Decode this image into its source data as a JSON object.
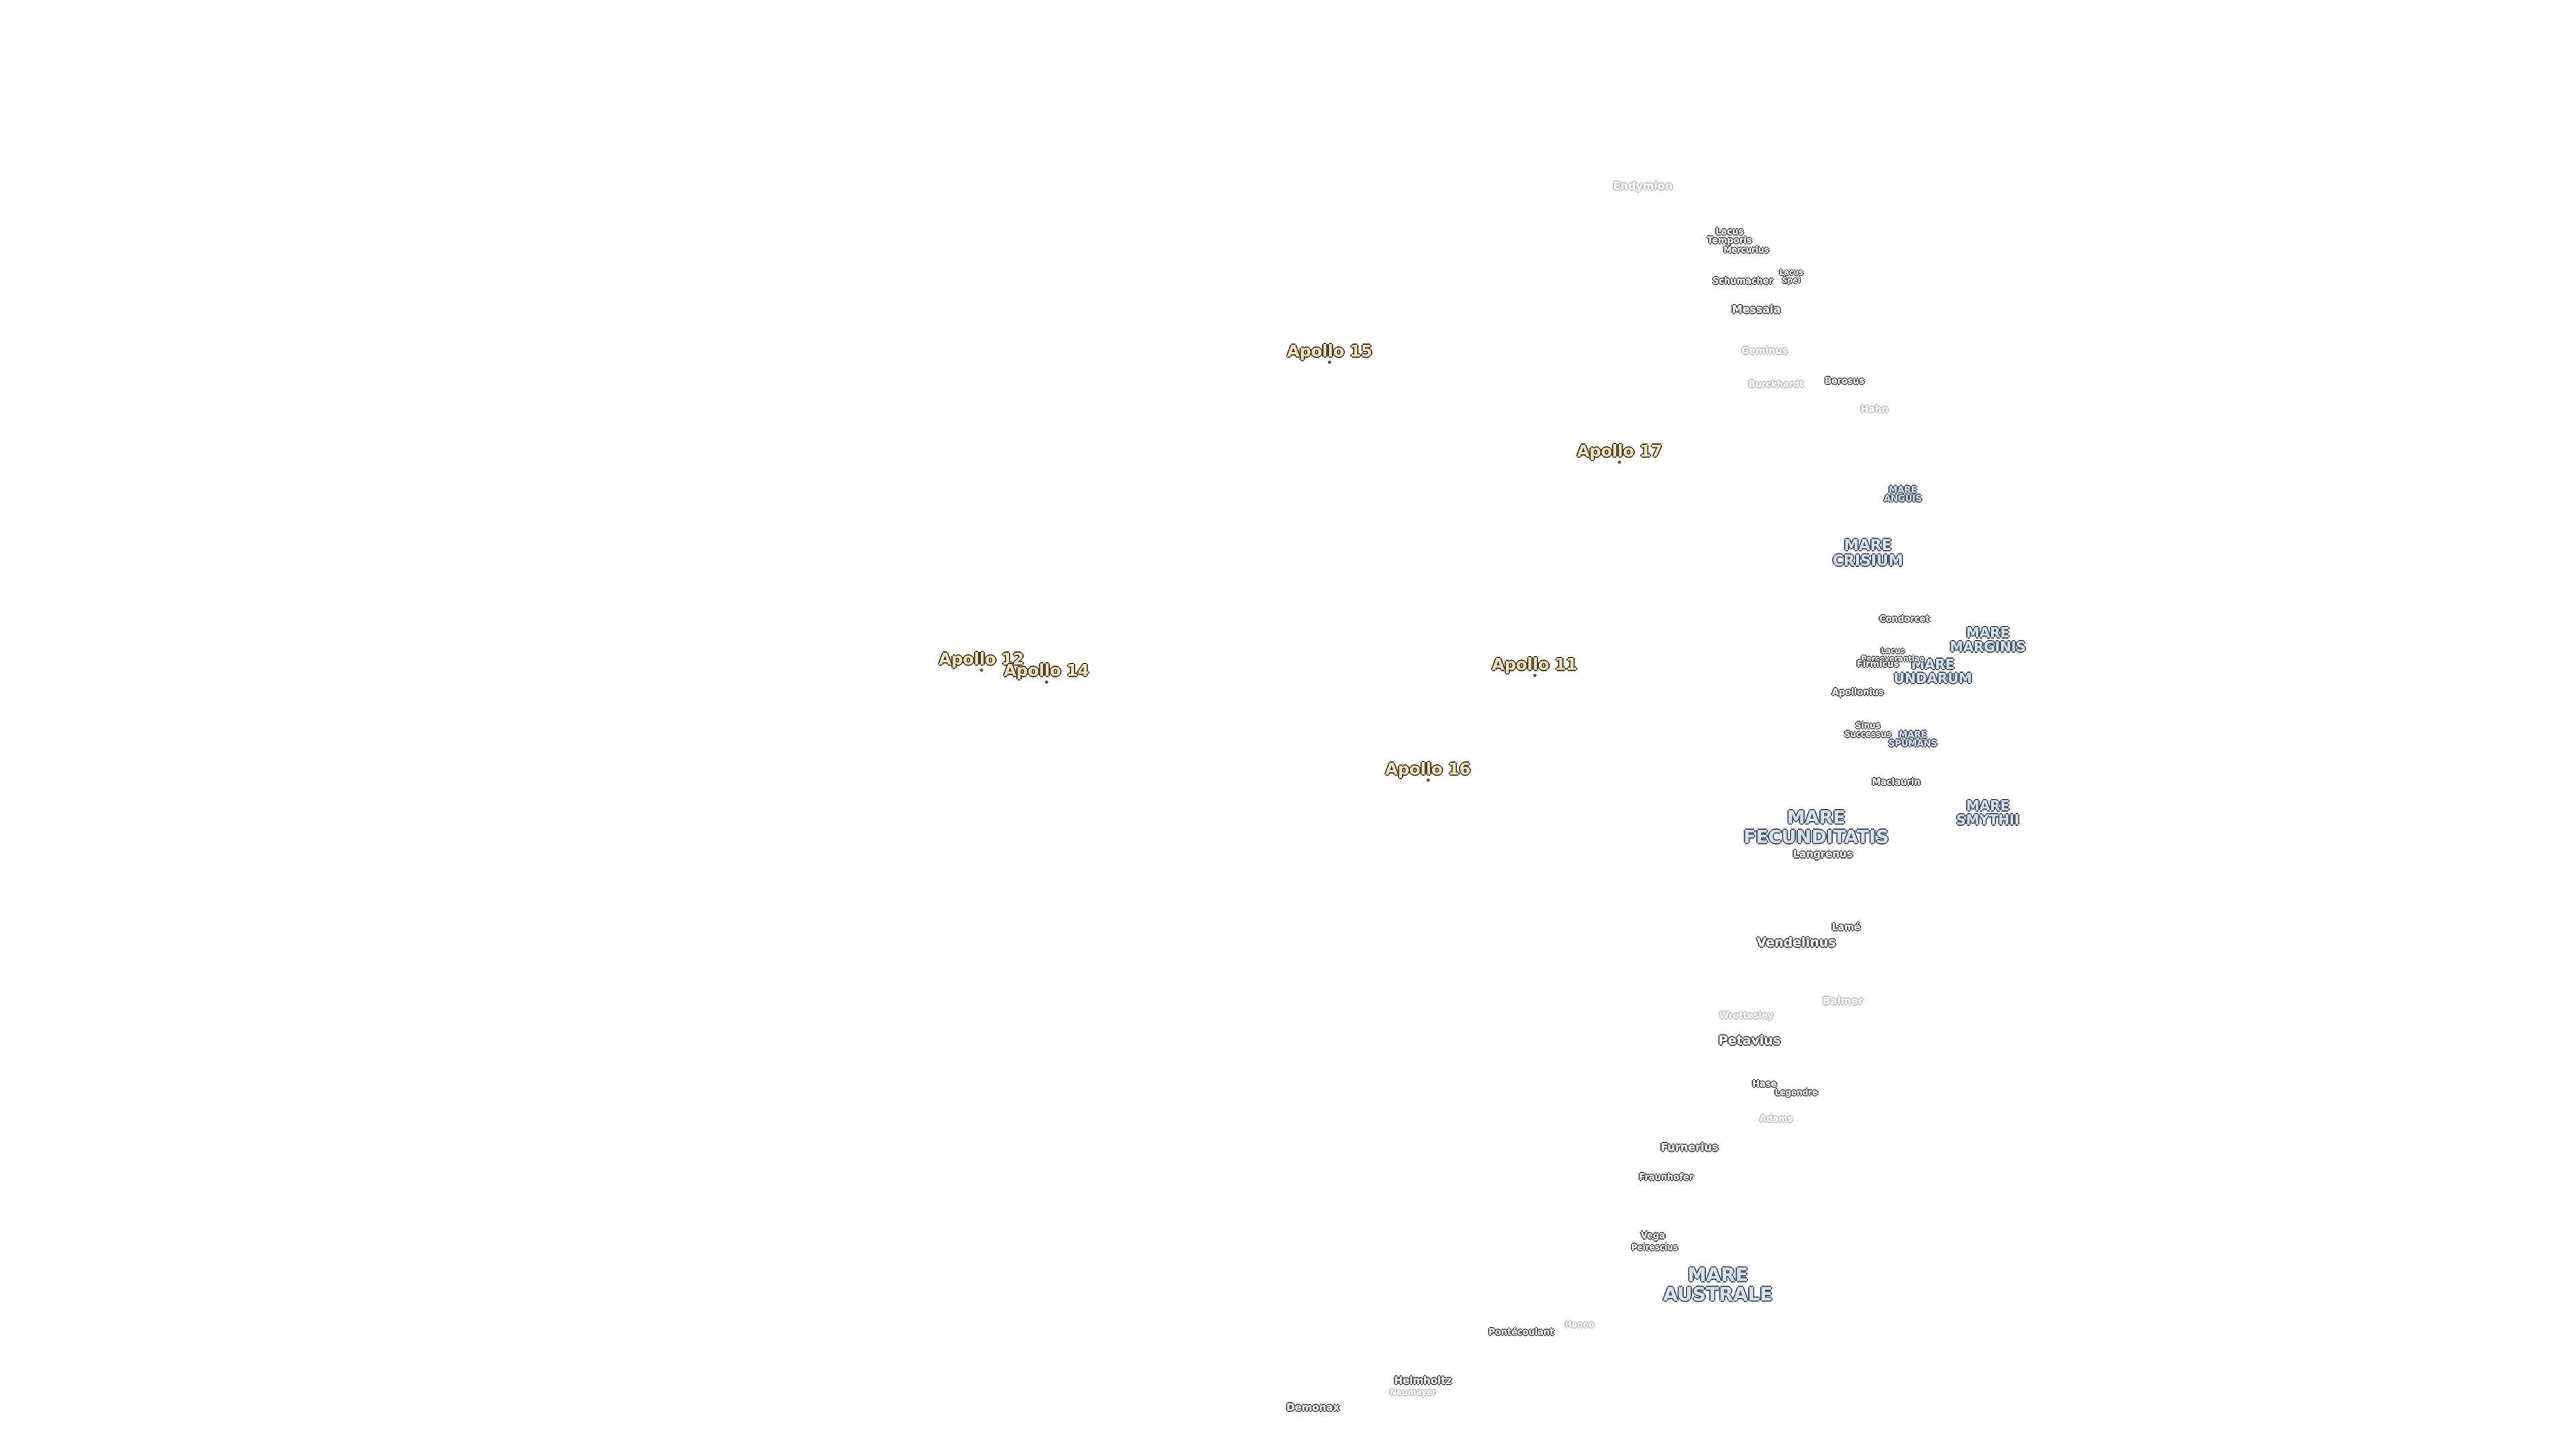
{
  "apollo_sites": [
    "Apollo 15",
    "Apollo 17",
    "Apollo 12",
    "Apollo 14",
    "Apollo 11",
    "Apollo 16"
  ],
  "maria": [
    "MARE ANGUIS",
    "MARE CRISIUM",
    "MARE MARGINIS",
    "MARE UNDARUM",
    "MARE SPUMANS",
    "MARE SMYTHII",
    "MARE FECUNDITATIS",
    "MARE AUSTRALE"
  ],
  "craters": [
    "Endymion",
    "Lacus Temporis",
    "Mercurius",
    "Schumacher",
    "Lacus Spei",
    "Messala",
    "Geminus",
    "Burckhardt",
    "Berosus",
    "Hahn",
    "Condorcet",
    "Lacus Perseverantiae",
    "Firmicus",
    "Apollonius",
    "Sinus Successus",
    "Maclaurin",
    "Langrenus",
    "Lamé",
    "Vendelinus",
    "Balmer",
    "Wrottesley",
    "Petavius",
    "Hase",
    "Legendre",
    "Adams",
    "Furnerius",
    "Fraunhofer",
    "Vega",
    "Peirescius",
    "Hanno",
    "Pontécoulant",
    "Helmholtz",
    "Neumayer",
    "Demonax"
  ]
}
